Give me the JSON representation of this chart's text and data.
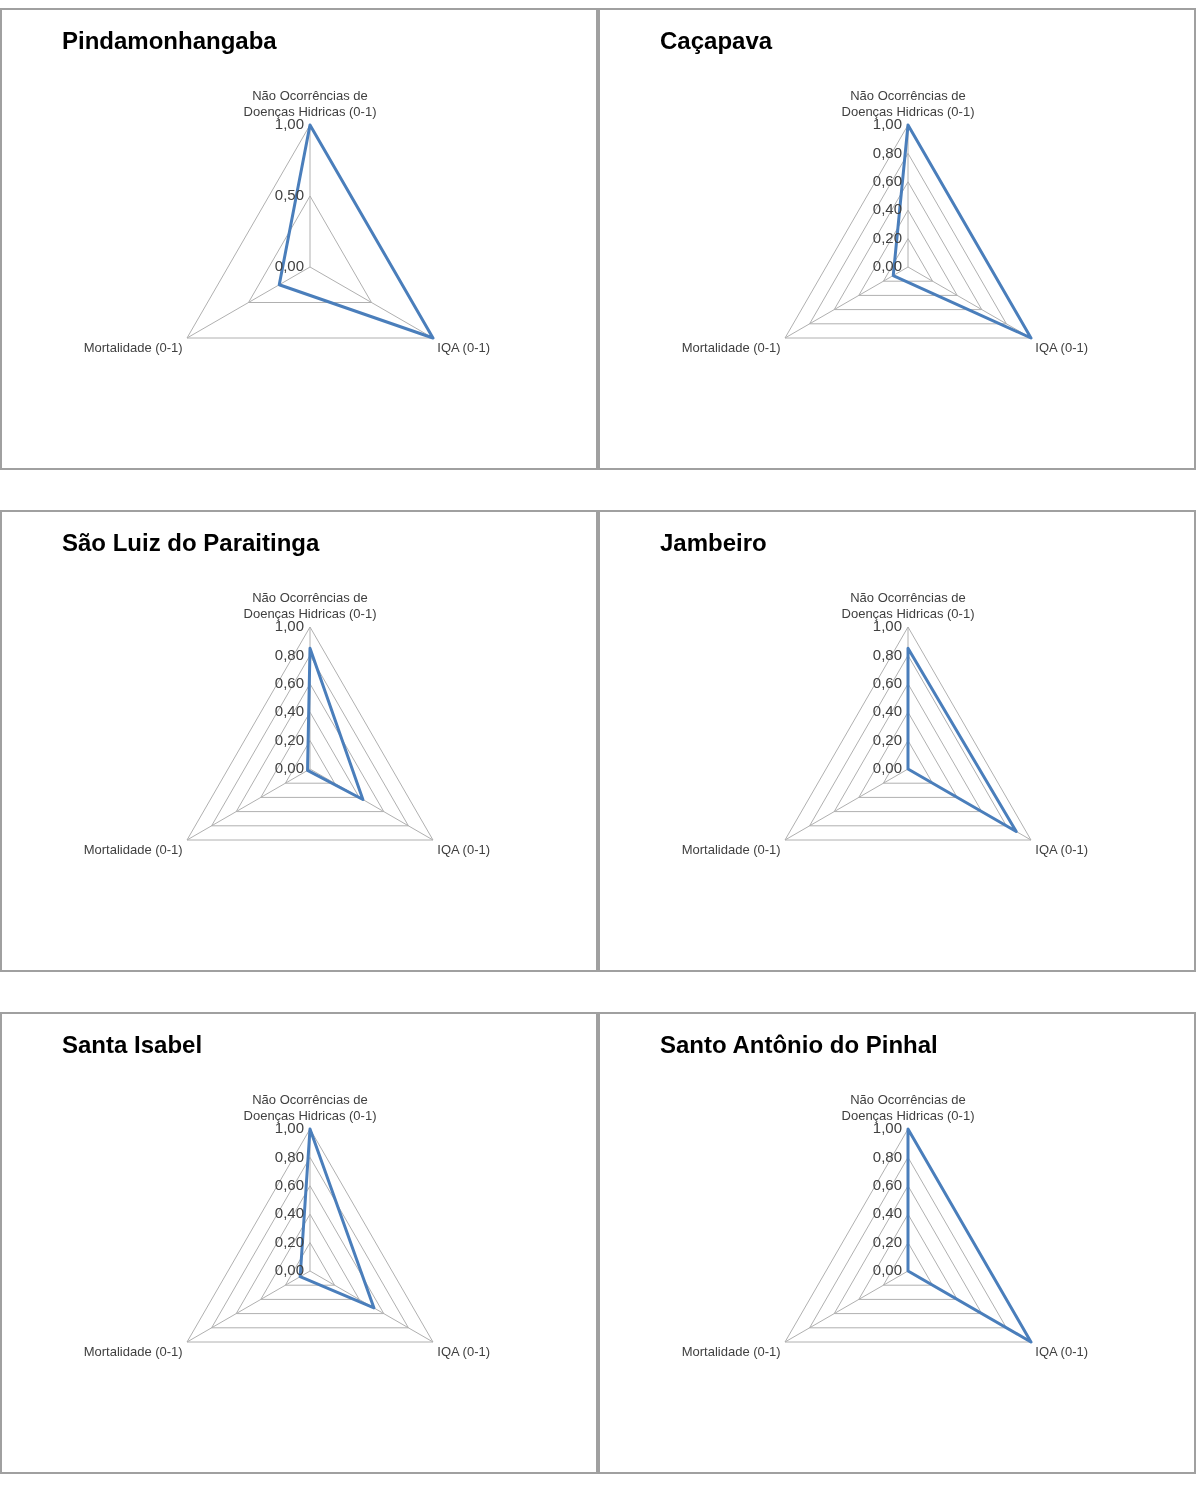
{
  "chart_data": [
    {
      "type": "radar",
      "title": "Pindamonhangaba",
      "categories": [
        "Não Ocorrências de Doenças Hidricas (0-1)",
        "IQA (0-1)",
        "Mortalidade (0-1)"
      ],
      "series": [
        {
          "color": "#4a7ebb",
          "values": [
            1.0,
            1.0,
            0.25
          ]
        }
      ],
      "ylim": [
        0,
        1
      ],
      "yticks": [
        {
          "value": 0,
          "label": "0,00"
        },
        {
          "value": 0.5,
          "label": "0,50"
        },
        {
          "value": 1,
          "label": "1,00"
        }
      ],
      "grid": true,
      "legend": false,
      "marker": "none"
    },
    {
      "type": "radar",
      "title": "Caçapava",
      "categories": [
        "Não Ocorrências de Doenças Hidricas (0-1)",
        "IQA (0-1)",
        "Mortalidade (0-1)"
      ],
      "series": [
        {
          "color": "#4a7ebb",
          "values": [
            1.0,
            1.0,
            0.12
          ]
        }
      ],
      "ylim": [
        0,
        1
      ],
      "yticks": [
        {
          "value": 0,
          "label": "0,00"
        },
        {
          "value": 0.2,
          "label": "0,20"
        },
        {
          "value": 0.4,
          "label": "0,40"
        },
        {
          "value": 0.6,
          "label": "0,60"
        },
        {
          "value": 0.8,
          "label": "0,80"
        },
        {
          "value": 1,
          "label": "1,00"
        }
      ],
      "grid": true,
      "legend": false,
      "marker": "none"
    },
    {
      "type": "radar",
      "title": "São Luiz do Paraitinga",
      "categories": [
        "Não Ocorrências de Doenças Hidricas (0-1)",
        "IQA (0-1)",
        "Mortalidade (0-1)"
      ],
      "series": [
        {
          "color": "#4a7ebb",
          "values": [
            0.85,
            0.43,
            0.02
          ]
        }
      ],
      "ylim": [
        0,
        1
      ],
      "yticks": [
        {
          "value": 0,
          "label": "0,00"
        },
        {
          "value": 0.2,
          "label": "0,20"
        },
        {
          "value": 0.4,
          "label": "0,40"
        },
        {
          "value": 0.6,
          "label": "0,60"
        },
        {
          "value": 0.8,
          "label": "0,80"
        },
        {
          "value": 1,
          "label": "1,00"
        }
      ],
      "grid": true,
      "legend": false,
      "marker": "none"
    },
    {
      "type": "radar",
      "title": "Jambeiro",
      "categories": [
        "Não Ocorrências de Doenças Hidricas (0-1)",
        "IQA (0-1)",
        "Mortalidade (0-1)"
      ],
      "series": [
        {
          "color": "#4a7ebb",
          "values": [
            0.85,
            0.88,
            0.0
          ]
        }
      ],
      "ylim": [
        0,
        1
      ],
      "yticks": [
        {
          "value": 0,
          "label": "0,00"
        },
        {
          "value": 0.2,
          "label": "0,20"
        },
        {
          "value": 0.4,
          "label": "0,40"
        },
        {
          "value": 0.6,
          "label": "0,60"
        },
        {
          "value": 0.8,
          "label": "0,80"
        },
        {
          "value": 1,
          "label": "1,00"
        }
      ],
      "grid": true,
      "legend": false,
      "marker": "none"
    },
    {
      "type": "radar",
      "title": "Santa Isabel",
      "categories": [
        "Não Ocorrências de Doenças Hidricas (0-1)",
        "IQA (0-1)",
        "Mortalidade (0-1)"
      ],
      "series": [
        {
          "color": "#4a7ebb",
          "values": [
            1.0,
            0.52,
            0.08
          ]
        }
      ],
      "ylim": [
        0,
        1
      ],
      "yticks": [
        {
          "value": 0,
          "label": "0,00"
        },
        {
          "value": 0.2,
          "label": "0,20"
        },
        {
          "value": 0.4,
          "label": "0,40"
        },
        {
          "value": 0.6,
          "label": "0,60"
        },
        {
          "value": 0.8,
          "label": "0,80"
        },
        {
          "value": 1,
          "label": "1,00"
        }
      ],
      "grid": true,
      "legend": false,
      "marker": "none"
    },
    {
      "type": "radar",
      "title": "Santo Antônio do Pinhal",
      "categories": [
        "Não Ocorrências de Doenças Hidricas (0-1)",
        "IQA (0-1)",
        "Mortalidade (0-1)"
      ],
      "series": [
        {
          "color": "#4a7ebb",
          "values": [
            1.0,
            1.0,
            0.0
          ]
        }
      ],
      "ylim": [
        0,
        1
      ],
      "yticks": [
        {
          "value": 0,
          "label": "0,00"
        },
        {
          "value": 0.2,
          "label": "0,20"
        },
        {
          "value": 0.4,
          "label": "0,40"
        },
        {
          "value": 0.6,
          "label": "0,60"
        },
        {
          "value": 0.8,
          "label": "0,80"
        },
        {
          "value": 1,
          "label": "1,00"
        }
      ],
      "grid": true,
      "legend": false,
      "marker": "none"
    }
  ]
}
